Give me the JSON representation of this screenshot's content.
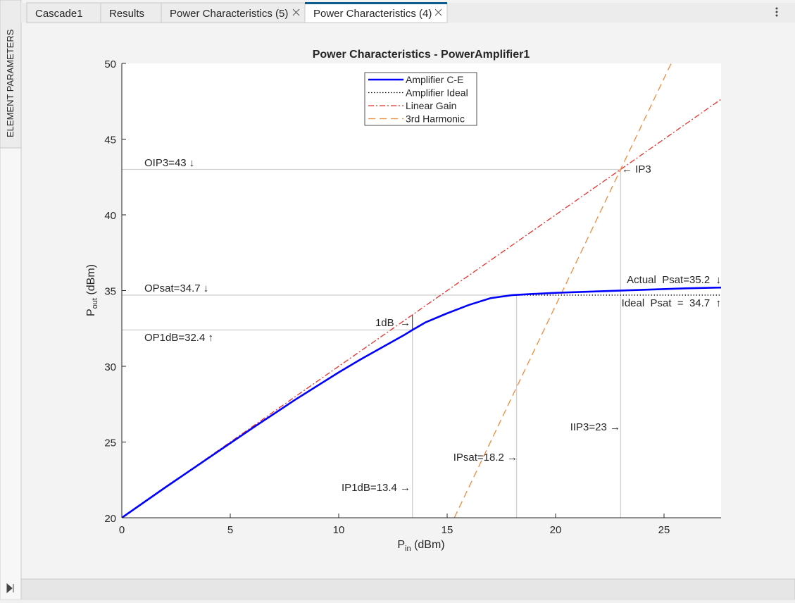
{
  "sidebar_label": "ELEMENT PARAMETERS",
  "tabs": [
    {
      "label": "Cascade1",
      "active": false
    },
    {
      "label": "Results",
      "active": false
    },
    {
      "label": "Power Characteristics (5)",
      "active": false
    },
    {
      "label": "Power Characteristics (4)",
      "active": true
    }
  ],
  "chart_data": {
    "type": "line",
    "title": "Power Characteristics - PowerAmplifier1",
    "x_label": "P",
    "x_label_sub": "in",
    "x_label_unit": "(dBm)",
    "y_label": "P",
    "y_label_sub": "out",
    "y_label_unit": "(dBm)",
    "xlim": [
      0,
      27.63
    ],
    "ylim": [
      20,
      50
    ],
    "xticks": [
      0,
      5,
      10,
      15,
      20,
      25
    ],
    "yticks": [
      20,
      25,
      30,
      35,
      40,
      45,
      50
    ],
    "legend": "top",
    "series": [
      {
        "name": "Amplifier C-E",
        "color": "#0000ff",
        "style": "solid",
        "x": [
          0,
          2,
          4,
          6,
          8,
          10,
          11,
          12,
          13,
          13.4,
          14,
          15,
          16,
          17,
          18,
          19,
          20,
          22,
          24,
          26,
          27.63
        ],
        "values": [
          20,
          22,
          23.95,
          25.9,
          27.8,
          29.6,
          30.45,
          31.25,
          32.05,
          32.4,
          32.9,
          33.5,
          34.05,
          34.5,
          34.7,
          34.78,
          34.85,
          34.95,
          35.05,
          35.15,
          35.2
        ]
      },
      {
        "name": "Amplifier Ideal",
        "color": "#000000",
        "style": "dotted",
        "x": [
          0,
          2,
          4,
          6,
          8,
          10,
          11,
          12,
          13,
          13.4,
          14,
          15,
          16,
          17,
          18,
          19,
          20,
          22,
          24,
          26,
          27.63
        ],
        "values": [
          20,
          22,
          23.95,
          25.9,
          27.8,
          29.6,
          30.45,
          31.25,
          32.05,
          32.4,
          32.9,
          33.5,
          34.05,
          34.5,
          34.7,
          34.7,
          34.7,
          34.7,
          34.7,
          34.7,
          34.7
        ]
      },
      {
        "name": "Linear Gain",
        "color": "#e8302a",
        "style": "dashdot",
        "x": [
          0,
          27.63
        ],
        "values": [
          20,
          47.63
        ]
      },
      {
        "name": "3rd Harmonic",
        "color": "#f08a3c",
        "style": "dashed",
        "x": [
          15.33,
          25.33
        ],
        "values": [
          20,
          50
        ]
      }
    ],
    "reference_points": [
      {
        "x": 13.4,
        "y": 32.4
      },
      {
        "x": 18.2,
        "y": 34.7
      },
      {
        "x": 23,
        "y": 43
      }
    ],
    "one_db_point": {
      "x": 13.4,
      "y": 33.4
    },
    "annotations": [
      "OIP3=43 ↓",
      "OPsat=34.7 ↓",
      "OP1dB=32.4 ↑",
      "← IP3",
      "Actual  Psat=35.2  ↓",
      "Ideal  Psat  =  34.7  ↑",
      "1dB  →",
      "IIP3=23 →",
      "IPsat=18.2 →",
      "IP1dB=13.4 →"
    ]
  }
}
